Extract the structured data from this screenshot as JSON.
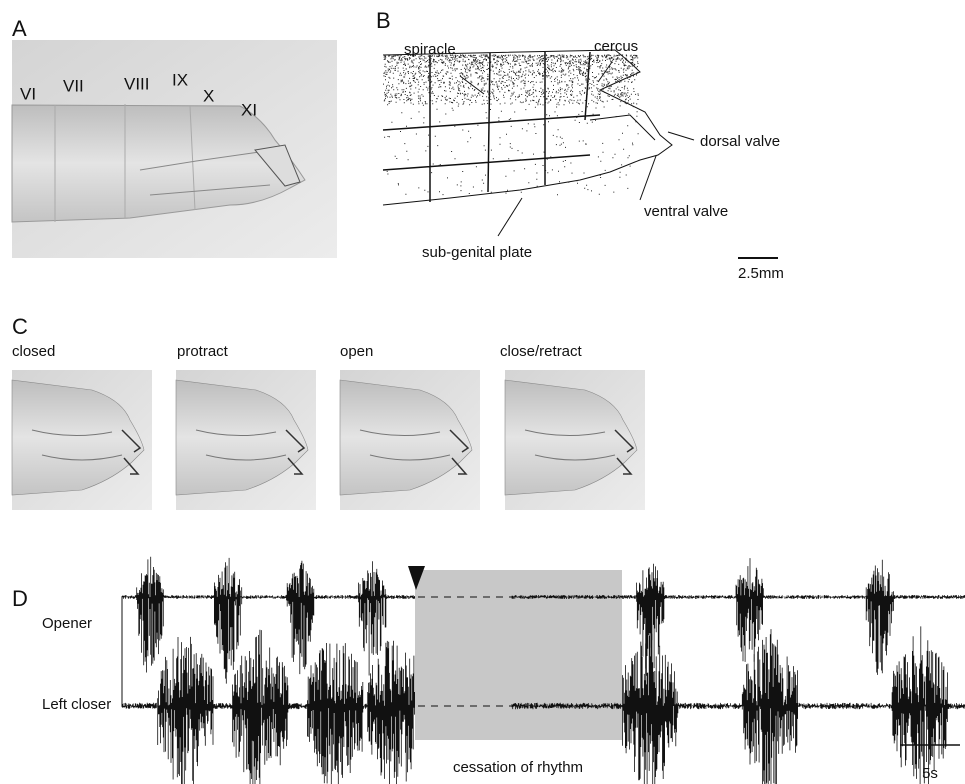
{
  "panels": [
    {
      "label": "A",
      "segments": [
        "VI",
        "VII",
        "VIII",
        "IX",
        "X",
        "XI"
      ]
    },
    {
      "label": "B",
      "annotations": {
        "spiracle": "spiracle",
        "cercus": "cercus",
        "dorsal_valve": "dorsal valve",
        "ventral_valve": "ventral valve",
        "sub_genital_plate": "sub-genital plate"
      },
      "scale_bar": "2.5mm"
    },
    {
      "label": "C",
      "frames": [
        "closed",
        "protract",
        "open",
        "close/retract"
      ]
    },
    {
      "label": "D",
      "traces": [
        "Opener",
        "Left closer"
      ],
      "annotation": "cessation of rhythm",
      "scale_bar": "5s"
    }
  ]
}
